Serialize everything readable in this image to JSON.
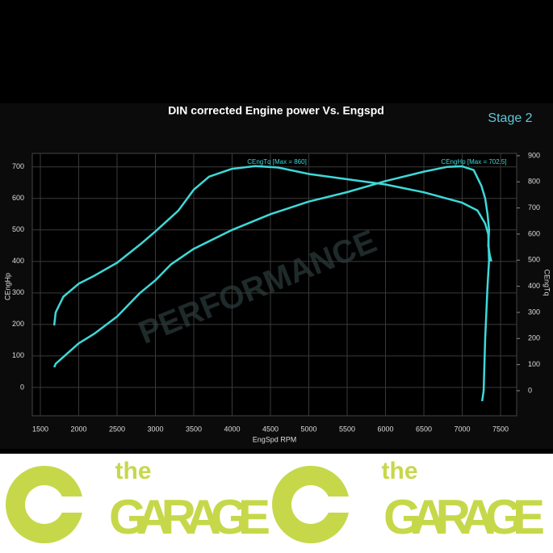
{
  "chart_data": {
    "type": "line",
    "title": "DIN corrected Engine power Vs. Engspd",
    "badge": "Stage 2",
    "watermark": "PERFORMANCE",
    "x_label": "EngSpd RPM",
    "y_label": "CEngHp",
    "y2_label": "CEngTq",
    "annotations": [
      "CEngTq [Max = 860]",
      "CEngHp [Max = 702.5]"
    ],
    "xlim": [
      1395,
      7710
    ],
    "xticks": [
      1500,
      2000,
      2500,
      3000,
      3500,
      4000,
      4500,
      5000,
      5500,
      6000,
      6500,
      7000,
      7500
    ],
    "ylim": [
      -90,
      743
    ],
    "yticks": [
      0,
      100,
      200,
      300,
      400,
      500,
      600,
      700
    ],
    "y2lim": [
      -96,
      909
    ],
    "y2ticks": [
      0,
      100,
      200,
      300,
      400,
      500,
      600,
      700,
      800,
      900
    ],
    "grid": true,
    "series": [
      {
        "name": "CEngHp",
        "color": "#3fd8d8",
        "x": [
          1680,
          1700,
          2000,
          2200,
          2500,
          2800,
          3000,
          3200,
          3500,
          4000,
          4500,
          5000,
          5500,
          6000,
          6500,
          6800,
          7000,
          7150,
          7250,
          7300,
          7330,
          7350,
          7340,
          7360,
          7380
        ],
        "values": [
          64,
          75,
          140,
          170,
          225,
          300,
          340,
          390,
          440,
          500,
          550,
          590,
          620,
          655,
          685,
          700,
          702,
          690,
          640,
          600,
          550,
          500,
          450,
          420,
          400
        ]
      },
      {
        "name": "CEngTq",
        "color": "#3fd8d8",
        "axis": "y2",
        "x": [
          1680,
          1700,
          1800,
          2000,
          2200,
          2500,
          2800,
          3000,
          3300,
          3500,
          3700,
          4000,
          4300,
          4600,
          5000,
          5500,
          6000,
          6500,
          7000,
          7200,
          7300,
          7340,
          7350,
          7330,
          7300,
          7280,
          7260
        ],
        "values": [
          250,
          300,
          360,
          410,
          440,
          490,
          560,
          610,
          690,
          770,
          820,
          850,
          860,
          855,
          830,
          810,
          790,
          760,
          720,
          690,
          640,
          600,
          500,
          400,
          200,
          0,
          -40
        ]
      }
    ]
  },
  "banner": {
    "tagline": "the",
    "brand": "GARAGE"
  }
}
